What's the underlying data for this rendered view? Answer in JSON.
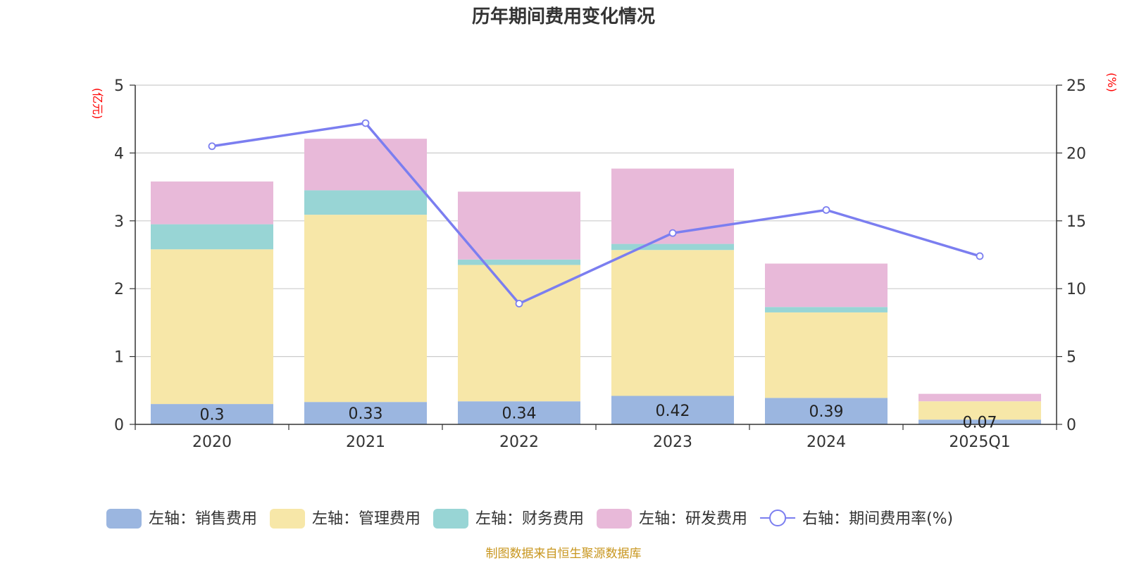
{
  "chart_data": {
    "type": "bar",
    "title": "历年期间费用变化情况",
    "categories": [
      "2020",
      "2021",
      "2022",
      "2023",
      "2024",
      "2025Q1"
    ],
    "left_axis": {
      "unit": "(亿元)",
      "ylim": [
        0,
        5
      ],
      "ticks": [
        "0",
        "1",
        "2",
        "3",
        "4",
        "5"
      ]
    },
    "right_axis": {
      "unit": "(%)",
      "ylim": [
        0,
        25
      ],
      "ticks": [
        "0",
        "5",
        "10",
        "15",
        "20",
        "25"
      ]
    },
    "series": [
      {
        "name": "左轴：销售费用",
        "kind": "bar",
        "axis": "left",
        "color": "#9bb6e0",
        "values": [
          0.3,
          0.33,
          0.34,
          0.42,
          0.39,
          0.07
        ],
        "labels": [
          "0.3",
          "0.33",
          "0.34",
          "0.42",
          "0.39",
          "0.07"
        ]
      },
      {
        "name": "左轴：管理费用",
        "kind": "bar",
        "axis": "left",
        "color": "#f7e7a8",
        "values": [
          2.28,
          2.76,
          2.01,
          2.15,
          1.26,
          0.27
        ]
      },
      {
        "name": "左轴：财务费用",
        "kind": "bar",
        "axis": "left",
        "color": "#98d5d5",
        "values": [
          0.37,
          0.36,
          0.08,
          0.09,
          0.08,
          0.0
        ]
      },
      {
        "name": "左轴：研发费用",
        "kind": "bar",
        "axis": "left",
        "color": "#e8b9d9",
        "values": [
          0.63,
          0.76,
          1.0,
          1.11,
          0.64,
          0.11
        ]
      },
      {
        "name": "右轴：期间费用率(%)",
        "kind": "line",
        "axis": "right",
        "color": "#7b7ef0",
        "values": [
          20.5,
          22.2,
          8.9,
          14.1,
          15.8,
          12.4
        ]
      }
    ],
    "grid": true,
    "legend_position": "bottom",
    "source": "制图数据来自恒生聚源数据库"
  }
}
